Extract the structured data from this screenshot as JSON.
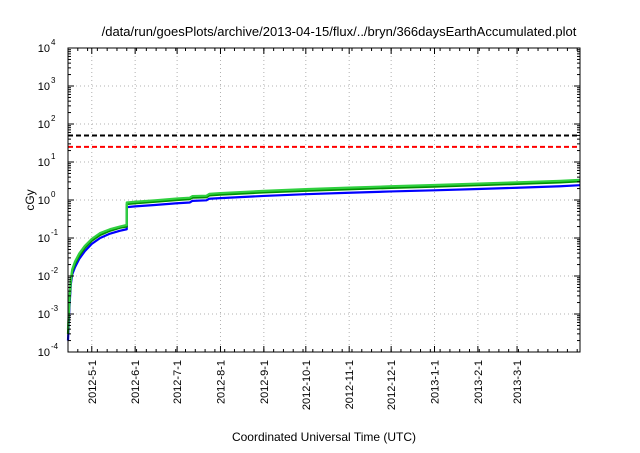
{
  "chart_data": {
    "type": "line",
    "title": "/data/run/goesPlots/archive/2013-04-15/flux/../bryn/366daysEarthAccumulated.plot",
    "xlabel": "Coordinated Universal Time (UTC)",
    "ylabel": "cGy",
    "y_scale": "log",
    "ylim": [
      0.0001,
      10000
    ],
    "xlim": [
      "2012-04-14",
      "2013-04-15"
    ],
    "x_ticks": [
      {
        "label": "2012-5-1",
        "date": "2012-05-01"
      },
      {
        "label": "2012-6-1",
        "date": "2012-06-01"
      },
      {
        "label": "2012-7-1",
        "date": "2012-07-01"
      },
      {
        "label": "2012-8-1",
        "date": "2012-08-01"
      },
      {
        "label": "2012-9-1",
        "date": "2012-09-01"
      },
      {
        "label": "2012-10-1",
        "date": "2012-10-01"
      },
      {
        "label": "2012-11-1",
        "date": "2012-11-01"
      },
      {
        "label": "2012-12-1",
        "date": "2012-12-01"
      },
      {
        "label": "2013-1-1",
        "date": "2013-01-01"
      },
      {
        "label": "2013-2-1",
        "date": "2013-02-01"
      },
      {
        "label": "2013-3-1",
        "date": "2013-03-01"
      }
    ],
    "y_ticks": [
      {
        "base": "10",
        "exp": "-4",
        "value": 0.0001
      },
      {
        "base": "10",
        "exp": "-3",
        "value": 0.001
      },
      {
        "base": "10",
        "exp": "-2",
        "value": 0.01
      },
      {
        "base": "10",
        "exp": "-1",
        "value": 0.1
      },
      {
        "base": "10",
        "exp": "0",
        "value": 1
      },
      {
        "base": "10",
        "exp": "1",
        "value": 10
      },
      {
        "base": "10",
        "exp": "2",
        "value": 100
      },
      {
        "base": "10",
        "exp": "3",
        "value": 1000
      },
      {
        "base": "10",
        "exp": "4",
        "value": 10000
      }
    ],
    "grid": true,
    "reference_lines": [
      {
        "value": 50,
        "color": "#000000",
        "style": "dashed"
      },
      {
        "value": 25,
        "color": "#ff0000",
        "style": "dashed"
      }
    ],
    "series": [
      {
        "color": "#0000ff",
        "points": [
          [
            "2012-04-14",
            0.0002
          ],
          [
            "2012-04-15",
            0.0015
          ],
          [
            "2012-04-16",
            0.006
          ],
          [
            "2012-04-17",
            0.011
          ],
          [
            "2012-04-19",
            0.017
          ],
          [
            "2012-04-22",
            0.028
          ],
          [
            "2012-04-26",
            0.045
          ],
          [
            "2012-05-01",
            0.07
          ],
          [
            "2012-05-07",
            0.1
          ],
          [
            "2012-05-14",
            0.13
          ],
          [
            "2012-05-21",
            0.155
          ],
          [
            "2012-05-26",
            0.17
          ],
          [
            "2012-05-26",
            0.65
          ],
          [
            "2012-06-01",
            0.68
          ],
          [
            "2012-06-15",
            0.74
          ],
          [
            "2012-07-01",
            0.82
          ],
          [
            "2012-07-10",
            0.86
          ],
          [
            "2012-07-12",
            0.95
          ],
          [
            "2012-07-22",
            0.98
          ],
          [
            "2012-07-24",
            1.08
          ],
          [
            "2012-08-01",
            1.12
          ],
          [
            "2012-09-01",
            1.28
          ],
          [
            "2012-10-01",
            1.42
          ],
          [
            "2012-11-01",
            1.55
          ],
          [
            "2012-12-01",
            1.68
          ],
          [
            "2013-01-01",
            1.8
          ],
          [
            "2013-02-01",
            1.95
          ],
          [
            "2013-03-01",
            2.1
          ],
          [
            "2013-04-01",
            2.3
          ],
          [
            "2013-04-15",
            2.45
          ]
        ]
      },
      {
        "color": "#009000",
        "points": [
          [
            "2012-04-14",
            0.0003
          ],
          [
            "2012-04-15",
            0.002
          ],
          [
            "2012-04-16",
            0.007
          ],
          [
            "2012-04-17",
            0.013
          ],
          [
            "2012-04-19",
            0.021
          ],
          [
            "2012-04-22",
            0.034
          ],
          [
            "2012-04-26",
            0.055
          ],
          [
            "2012-05-01",
            0.085
          ],
          [
            "2012-05-07",
            0.12
          ],
          [
            "2012-05-14",
            0.155
          ],
          [
            "2012-05-21",
            0.185
          ],
          [
            "2012-05-26",
            0.2
          ],
          [
            "2012-05-26",
            0.78
          ],
          [
            "2012-06-01",
            0.82
          ],
          [
            "2012-06-15",
            0.9
          ],
          [
            "2012-07-01",
            1.0
          ],
          [
            "2012-07-10",
            1.05
          ],
          [
            "2012-07-12",
            1.15
          ],
          [
            "2012-07-22",
            1.18
          ],
          [
            "2012-07-24",
            1.32
          ],
          [
            "2012-08-01",
            1.38
          ],
          [
            "2012-09-01",
            1.58
          ],
          [
            "2012-10-01",
            1.75
          ],
          [
            "2012-11-01",
            1.92
          ],
          [
            "2012-12-01",
            2.08
          ],
          [
            "2013-01-01",
            2.25
          ],
          [
            "2013-02-01",
            2.45
          ],
          [
            "2013-03-01",
            2.65
          ],
          [
            "2013-04-01",
            2.9
          ],
          [
            "2013-04-15",
            3.1
          ]
        ]
      },
      {
        "color": "#30d040",
        "points": [
          [
            "2012-04-14",
            0.0004
          ],
          [
            "2012-04-15",
            0.0025
          ],
          [
            "2012-04-16",
            0.008
          ],
          [
            "2012-04-17",
            0.015
          ],
          [
            "2012-04-19",
            0.024
          ],
          [
            "2012-04-22",
            0.039
          ],
          [
            "2012-04-26",
            0.062
          ],
          [
            "2012-05-01",
            0.095
          ],
          [
            "2012-05-07",
            0.135
          ],
          [
            "2012-05-14",
            0.17
          ],
          [
            "2012-05-21",
            0.2
          ],
          [
            "2012-05-26",
            0.22
          ],
          [
            "2012-05-26",
            0.86
          ],
          [
            "2012-06-01",
            0.9
          ],
          [
            "2012-06-15",
            0.98
          ],
          [
            "2012-07-01",
            1.1
          ],
          [
            "2012-07-10",
            1.15
          ],
          [
            "2012-07-12",
            1.27
          ],
          [
            "2012-07-22",
            1.3
          ],
          [
            "2012-07-24",
            1.45
          ],
          [
            "2012-08-01",
            1.52
          ],
          [
            "2012-09-01",
            1.74
          ],
          [
            "2012-10-01",
            1.93
          ],
          [
            "2012-11-01",
            2.12
          ],
          [
            "2012-12-01",
            2.3
          ],
          [
            "2013-01-01",
            2.48
          ],
          [
            "2013-02-01",
            2.7
          ],
          [
            "2013-03-01",
            2.92
          ],
          [
            "2013-04-01",
            3.2
          ],
          [
            "2013-04-15",
            3.4
          ]
        ]
      }
    ]
  }
}
